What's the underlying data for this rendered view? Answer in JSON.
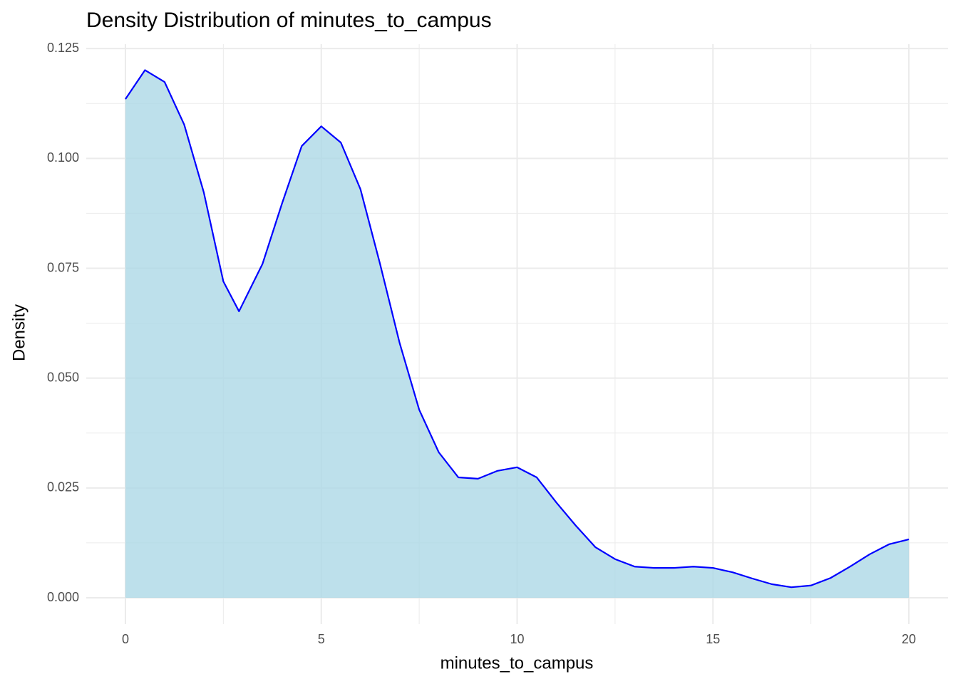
{
  "chart_data": {
    "type": "density",
    "title": "Density Distribution of minutes_to_campus",
    "x_label": "minutes_to_campus",
    "y_label": "Density",
    "x": [
      0,
      0.5,
      1,
      1.5,
      2,
      2.5,
      2.9,
      3.5,
      4,
      4.5,
      5,
      5.5,
      6,
      6.5,
      7,
      7.5,
      8,
      8.5,
      9,
      9.5,
      10,
      10.5,
      11,
      11.5,
      12,
      12.5,
      13,
      13.5,
      14,
      14.5,
      15,
      15.5,
      16,
      16.5,
      17,
      17.5,
      18,
      18.5,
      19,
      19.5,
      20
    ],
    "values": [
      0.1135,
      0.1201,
      0.1174,
      0.1077,
      0.0923,
      0.072,
      0.0652,
      0.076,
      0.0898,
      0.1028,
      0.1073,
      0.1036,
      0.093,
      0.076,
      0.058,
      0.0428,
      0.0331,
      0.0274,
      0.0271,
      0.0289,
      0.0297,
      0.0274,
      0.0217,
      0.0164,
      0.0115,
      0.0088,
      0.0071,
      0.0068,
      0.0068,
      0.0071,
      0.0068,
      0.0058,
      0.0044,
      0.0031,
      0.0024,
      0.0028,
      0.0045,
      0.0071,
      0.0099,
      0.0122,
      0.0133
    ],
    "line_color": "#0000ff",
    "fill_color": "#add8e6",
    "xlim": [
      -1,
      21
    ],
    "ylim": [
      -0.006,
      0.126
    ],
    "xticks": [
      0,
      5,
      10,
      15,
      20
    ],
    "yticks": [
      {
        "value": 0,
        "label": "0.000"
      },
      {
        "value": 0.025,
        "label": "0.025"
      },
      {
        "value": 0.05,
        "label": "0.050"
      },
      {
        "value": 0.075,
        "label": "0.075"
      },
      {
        "value": 0.1,
        "label": "0.100"
      },
      {
        "value": 0.125,
        "label": "0.125"
      }
    ],
    "x_minor_ticks": [
      2.5,
      7.5,
      12.5,
      17.5
    ],
    "y_minor_ticks": [
      0.0125,
      0.0375,
      0.0625,
      0.0875,
      0.1125
    ],
    "grid": true
  }
}
